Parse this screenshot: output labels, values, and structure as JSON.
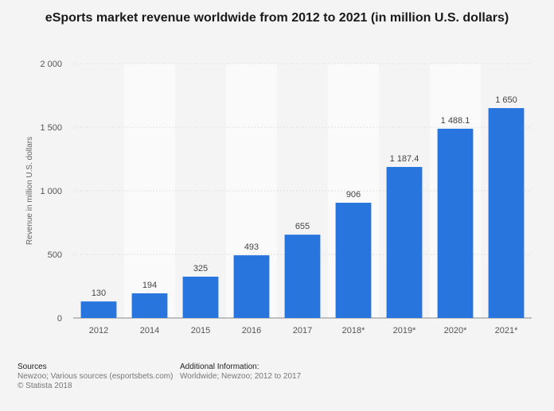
{
  "chart_data": {
    "type": "bar",
    "title": "eSports market revenue worldwide from 2012 to 2021 (in million U.S. dollars)",
    "xlabel": "",
    "ylabel": "Revenue in million U.S. dollars",
    "ylim": [
      0,
      2000
    ],
    "yticks": [
      0,
      500,
      1000,
      1500,
      2000
    ],
    "ytick_labels": [
      "0",
      "500",
      "1 000",
      "1 500",
      "2 000"
    ],
    "categories": [
      "2012",
      "2014",
      "2015",
      "2016",
      "2017",
      "2018*",
      "2019*",
      "2020*",
      "2021*"
    ],
    "values": [
      130,
      194,
      325,
      493,
      655,
      906,
      1187.4,
      1488.1,
      1650
    ],
    "value_labels": [
      "130",
      "194",
      "325",
      "493",
      "655",
      "906",
      "1 187.4",
      "1 488.1",
      "1 650"
    ],
    "grid": true,
    "legend": "none",
    "bar_color": "#2876dd"
  },
  "footer": {
    "sources_title": "Sources",
    "sources_text": "Newzoo; Various sources (esportsbets.com)",
    "copyright": "© Statista 2018",
    "additional_title": "Additional Information:",
    "additional_text": "Worldwide; Newzoo; 2012 to 2017"
  }
}
